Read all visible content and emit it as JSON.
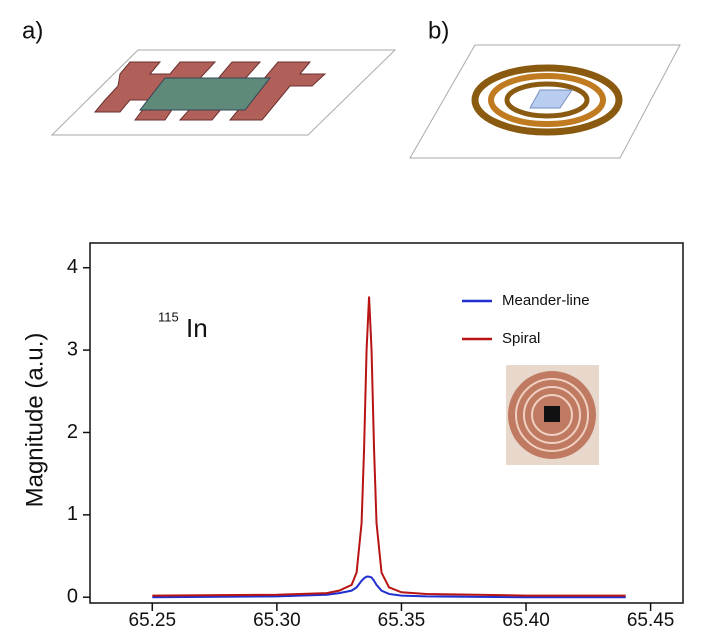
{
  "panel_labels": [
    "a)",
    "b)"
  ],
  "chart_data": {
    "type": "line",
    "ylabel": "Magnitude (a.u.)",
    "annotation": {
      "superscript": "115",
      "text": "In"
    },
    "x": [
      65.25,
      65.3,
      65.32,
      65.325,
      65.33,
      65.332,
      65.334,
      65.335,
      65.336,
      65.337,
      65.338,
      65.339,
      65.34,
      65.342,
      65.345,
      65.35,
      65.36,
      65.4,
      65.44
    ],
    "series": [
      {
        "name": "Meander-line",
        "color": "#1f2fd0",
        "values": [
          0,
          0.01,
          0.03,
          0.05,
          0.08,
          0.12,
          0.2,
          0.23,
          0.25,
          0.25,
          0.24,
          0.2,
          0.15,
          0.08,
          0.04,
          0.02,
          0.01,
          0,
          0
        ]
      },
      {
        "name": "Spiral",
        "color": "#b81414",
        "values": [
          0.02,
          0.03,
          0.05,
          0.08,
          0.15,
          0.3,
          0.9,
          1.8,
          3.0,
          3.65,
          3.0,
          1.8,
          0.9,
          0.3,
          0.12,
          0.06,
          0.04,
          0.02,
          0.02
        ]
      }
    ],
    "xlim": [
      65.225,
      65.463
    ],
    "ylim": [
      -0.07,
      4.3
    ],
    "xticks": [
      {
        "value": 65.25,
        "label": "65.25"
      },
      {
        "value": 65.3,
        "label": "65.30"
      },
      {
        "value": 65.35,
        "label": "65.35"
      },
      {
        "value": 65.4,
        "label": "65.40"
      },
      {
        "value": 65.45,
        "label": "65.45"
      }
    ],
    "yticks": [
      0,
      1,
      2,
      3,
      4
    ],
    "legend": "upper-right"
  }
}
